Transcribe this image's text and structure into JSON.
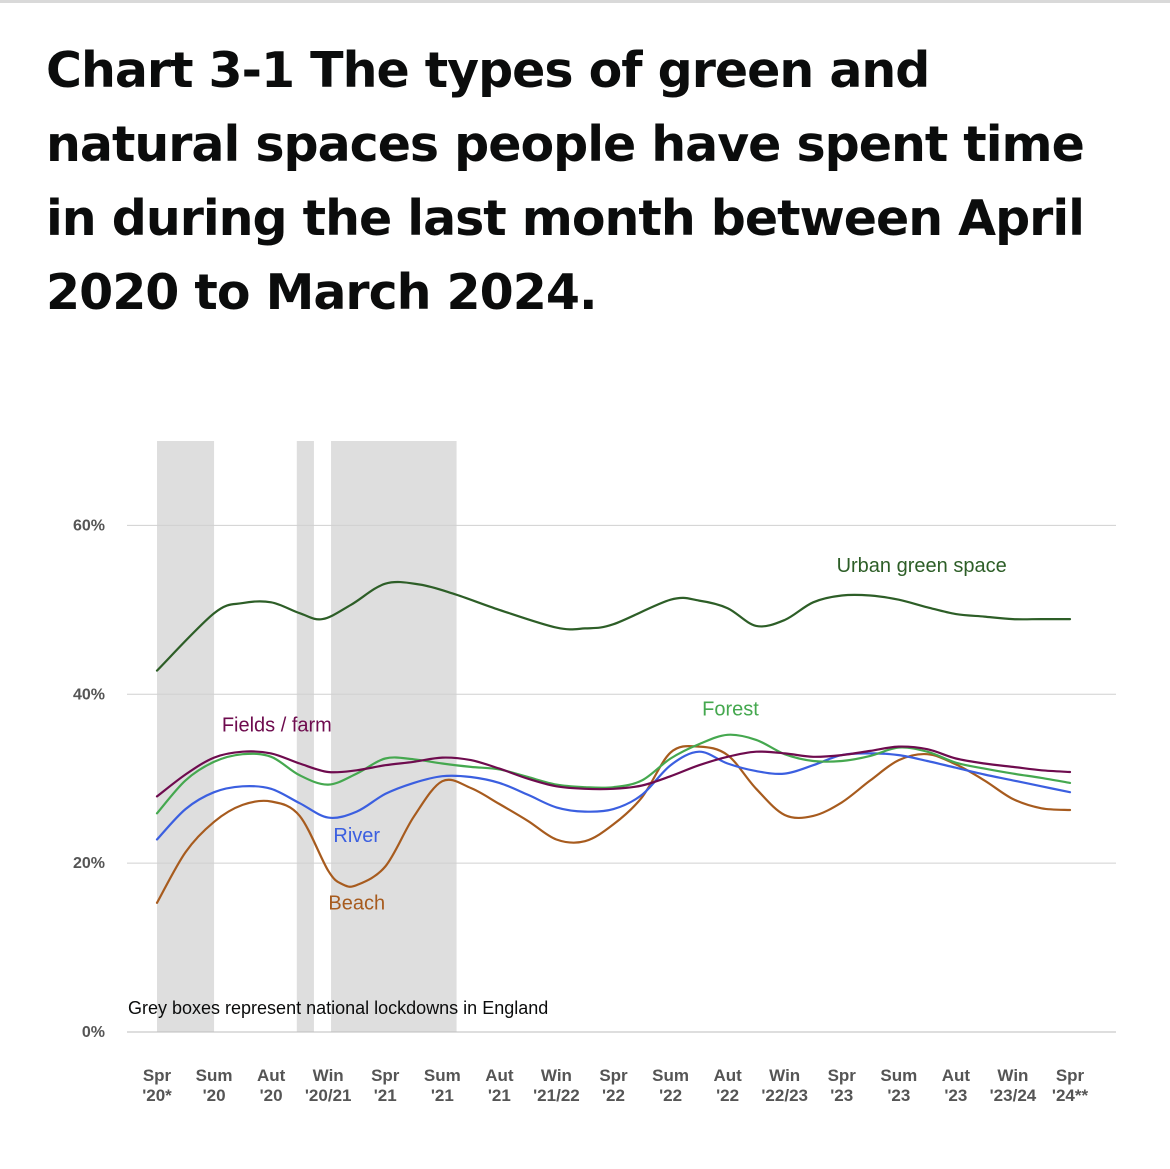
{
  "title": "Chart 3-1 The types of green and natural spaces people have spent time in during the last month between April 2020 to March 2024.",
  "chart_data": {
    "type": "line",
    "title": "Chart 3-1 The types of green and natural spaces people have spent time in during the last month between April 2020 to March 2024.",
    "xlabel": "",
    "ylabel": "",
    "ylim": [
      0,
      70
    ],
    "y_ticks": [
      0,
      20,
      40,
      60
    ],
    "y_tick_labels": [
      "0%",
      "20%",
      "40%",
      "60%"
    ],
    "grid": true,
    "x_tick_labels": [
      [
        "Spr",
        "'20*"
      ],
      [
        "Sum",
        "'20"
      ],
      [
        "Aut",
        "'20"
      ],
      [
        "Win",
        "'20/21"
      ],
      [
        "Spr",
        "'21"
      ],
      [
        "Sum",
        "'21"
      ],
      [
        "Aut",
        "'21"
      ],
      [
        "Win",
        "'21/22"
      ],
      [
        "Spr",
        "'22"
      ],
      [
        "Sum",
        "'22"
      ],
      [
        "Aut",
        "'22"
      ],
      [
        "Win",
        "'22/23"
      ],
      [
        "Spr",
        "'23"
      ],
      [
        "Sum",
        "'23"
      ],
      [
        "Aut",
        "'23"
      ],
      [
        "Win",
        "'23/24"
      ],
      [
        "Spr",
        "'24**"
      ]
    ],
    "x_range": [
      0,
      16
    ],
    "lockdowns": [
      {
        "start": 0.0,
        "end": 1.0
      },
      {
        "start": 2.45,
        "end": 2.75
      },
      {
        "start": 3.05,
        "end": 5.25
      }
    ],
    "note": "Grey boxes represent national lockdowns in England",
    "series": [
      {
        "name": "Urban green space",
        "color": "#2d5e27",
        "x": [
          0,
          1,
          1.5,
          2,
          2.5,
          2.9,
          3.4,
          4,
          4.6,
          5.2,
          6,
          7,
          7.5,
          8,
          9,
          9.5,
          10,
          10.5,
          11,
          11.5,
          12,
          12.5,
          13,
          13.5,
          14,
          14.5,
          15,
          15.5,
          16
        ],
        "values": [
          42.8,
          49.6,
          50.8,
          50.9,
          49.6,
          48.9,
          50.6,
          53.1,
          53.0,
          51.9,
          50.0,
          47.9,
          47.8,
          48.3,
          51.2,
          51.1,
          50.2,
          48.1,
          48.8,
          50.9,
          51.7,
          51.7,
          51.2,
          50.3,
          49.5,
          49.2,
          48.9,
          48.9,
          48.9
        ]
      },
      {
        "name": "Fields / farm",
        "color": "#6e0b4e",
        "x": [
          0,
          0.5,
          1,
          1.5,
          2,
          2.5,
          3,
          3.5,
          4,
          4.5,
          5,
          5.5,
          6,
          6.5,
          7,
          7.5,
          8,
          8.5,
          9,
          9.5,
          10,
          10.5,
          11,
          11.5,
          12,
          12.5,
          13,
          13.5,
          14,
          14.5,
          15,
          15.5,
          16
        ],
        "values": [
          27.9,
          30.5,
          32.5,
          33.2,
          33.0,
          31.8,
          30.8,
          31.0,
          31.6,
          32.0,
          32.5,
          32.2,
          31.2,
          30.0,
          29.1,
          28.8,
          28.8,
          29.2,
          30.3,
          31.6,
          32.6,
          33.2,
          33.0,
          32.6,
          32.8,
          33.3,
          33.8,
          33.5,
          32.4,
          31.8,
          31.4,
          31.0,
          30.8
        ]
      },
      {
        "name": "Forest",
        "color": "#45a84f",
        "x": [
          0,
          0.5,
          1,
          1.5,
          2,
          2.5,
          3,
          3.5,
          4,
          4.5,
          5,
          5.5,
          6,
          6.5,
          7,
          7.5,
          8,
          8.5,
          9,
          9.5,
          10,
          10.5,
          11,
          11.5,
          12,
          12.5,
          13,
          13.5,
          14,
          14.5,
          15,
          15.5,
          16
        ],
        "values": [
          25.9,
          29.8,
          32.0,
          32.9,
          32.6,
          30.4,
          29.3,
          30.6,
          32.4,
          32.3,
          31.8,
          31.4,
          31.1,
          30.2,
          29.3,
          29.0,
          29.0,
          29.8,
          32.4,
          34.1,
          35.2,
          34.6,
          32.9,
          32.1,
          32.1,
          32.7,
          33.7,
          33.2,
          31.9,
          31.2,
          30.6,
          30.1,
          29.5
        ]
      },
      {
        "name": "River",
        "color": "#3b5fe0",
        "x": [
          0,
          0.5,
          1,
          1.5,
          2,
          2.5,
          3,
          3.5,
          4,
          4.5,
          5,
          5.5,
          6,
          6.5,
          7,
          7.5,
          8,
          8.5,
          9,
          9.5,
          10,
          10.5,
          11,
          11.5,
          12,
          12.5,
          13,
          13.5,
          14,
          14.5,
          15,
          15.5,
          16
        ],
        "values": [
          22.8,
          26.4,
          28.4,
          29.1,
          28.8,
          27.1,
          25.4,
          26.1,
          28.2,
          29.5,
          30.3,
          30.2,
          29.5,
          28.1,
          26.6,
          26.1,
          26.4,
          28.1,
          31.6,
          33.2,
          31.8,
          30.9,
          30.6,
          31.6,
          32.8,
          33.0,
          32.8,
          32.1,
          31.3,
          30.5,
          29.8,
          29.1,
          28.4
        ]
      },
      {
        "name": "Beach",
        "color": "#a75b1e",
        "x": [
          0,
          0.5,
          1,
          1.5,
          2,
          2.5,
          3,
          3.25,
          3.5,
          4,
          4.5,
          5,
          5.5,
          6,
          6.5,
          7,
          7.5,
          8,
          8.5,
          9,
          9.5,
          10,
          10.5,
          11,
          11.5,
          12,
          12.5,
          13,
          13.5,
          14,
          14.5,
          15,
          15.5,
          16
        ],
        "values": [
          15.3,
          21.3,
          24.9,
          26.9,
          27.3,
          25.6,
          19.1,
          17.5,
          17.4,
          19.6,
          25.5,
          29.7,
          28.9,
          27.0,
          25.0,
          22.8,
          22.6,
          24.6,
          27.8,
          33.1,
          33.8,
          32.8,
          28.8,
          25.7,
          25.6,
          27.2,
          29.8,
          32.2,
          32.9,
          31.7,
          29.8,
          27.6,
          26.5,
          26.3
        ]
      }
    ],
    "annotations": [
      {
        "text": "Urban green space",
        "series": "Urban green space",
        "x": 13.4,
        "y": 54.5
      },
      {
        "text": "Forest",
        "series": "Forest",
        "x": 10.05,
        "y": 37.5
      },
      {
        "text": "Fields / farm",
        "series": "Fields / farm",
        "x": 2.1,
        "y": 35.6
      },
      {
        "text": "River",
        "series": "River",
        "x": 3.5,
        "y": 22.5
      },
      {
        "text": "Beach",
        "series": "Beach",
        "x": 3.5,
        "y": 14.5
      }
    ]
  }
}
